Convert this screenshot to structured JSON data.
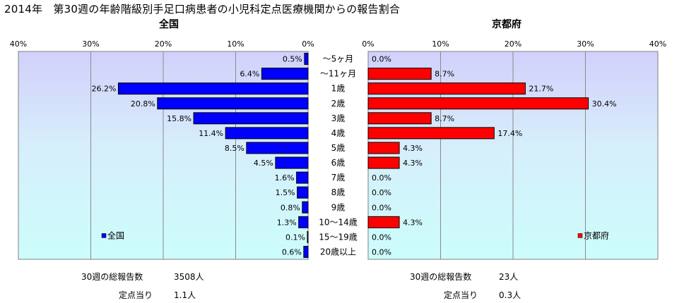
{
  "title": "2014年　第30週の年齢階級別手足口病患者の小児科定点医療機関からの報告割合",
  "chart_data": [
    {
      "type": "bar",
      "orientation": "horizontal",
      "direction": "right-to-left",
      "title": "全国",
      "categories": [
        "～5ヶ月",
        "～11ヶ月",
        "1歳",
        "2歳",
        "3歳",
        "4歳",
        "5歳",
        "6歳",
        "7歳",
        "8歳",
        "9歳",
        "10～14歳",
        "15～19歳",
        "20歳以上"
      ],
      "series": [
        {
          "name": "全国",
          "color": "#0000ff",
          "values": [
            0.5,
            6.4,
            26.2,
            20.8,
            15.8,
            11.4,
            8.5,
            4.5,
            1.6,
            1.5,
            0.8,
            1.3,
            0.1,
            0.6
          ],
          "labels": [
            "0.5%",
            "6.4%",
            "26.2%",
            "20.8%",
            "15.8%",
            "11.4%",
            "8.5%",
            "4.5%",
            "1.6%",
            "1.5%",
            "0.8%",
            "1.3%",
            "0.1%",
            "0.6%"
          ]
        }
      ],
      "xlim": [
        0,
        40
      ],
      "ticks": [
        0,
        10,
        20,
        30,
        40
      ],
      "tick_labels": [
        "0%",
        "10%",
        "20%",
        "30%",
        "40%"
      ],
      "grid": true,
      "legend": "bottom-left",
      "summary": [
        {
          "label": "30週の総報告数",
          "value": "3508人"
        },
        {
          "label": "定点当り",
          "value": "1.1人"
        }
      ]
    },
    {
      "type": "bar",
      "orientation": "horizontal",
      "direction": "left-to-right",
      "title": "京都府",
      "categories": [
        "～5ヶ月",
        "～11ヶ月",
        "1歳",
        "2歳",
        "3歳",
        "4歳",
        "5歳",
        "6歳",
        "7歳",
        "8歳",
        "9歳",
        "10～14歳",
        "15～19歳",
        "20歳以上"
      ],
      "series": [
        {
          "name": "京都府",
          "color": "#ff0000",
          "values": [
            0.0,
            8.7,
            21.7,
            30.4,
            8.7,
            17.4,
            4.3,
            4.3,
            0.0,
            0.0,
            0.0,
            4.3,
            0.0,
            0.0
          ],
          "labels": [
            "0.0%",
            "8.7%",
            "21.7%",
            "30.4%",
            "8.7%",
            "17.4%",
            "4.3%",
            "4.3%",
            "0.0%",
            "0.0%",
            "0.0%",
            "4.3%",
            "0.0%",
            "0.0%"
          ]
        }
      ],
      "xlim": [
        0,
        40
      ],
      "ticks": [
        0,
        10,
        20,
        30,
        40
      ],
      "tick_labels": [
        "0%",
        "10%",
        "20%",
        "30%",
        "40%"
      ],
      "grid": true,
      "legend": "bottom-right",
      "summary": [
        {
          "label": "30週の総報告数",
          "value": "23人"
        },
        {
          "label": "定点当り",
          "value": "0.3人"
        }
      ]
    }
  ]
}
